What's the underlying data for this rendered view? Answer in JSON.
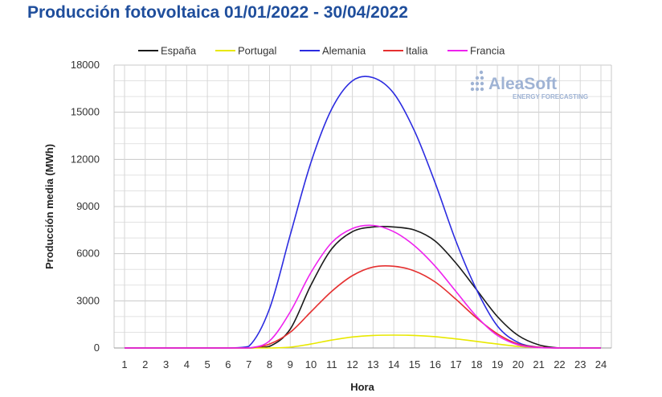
{
  "chart_data": {
    "type": "line",
    "title": "Producción fotovoltaica 01/01/2022 - 30/04/2022",
    "xlabel": "Hora",
    "ylabel": "Producción media (MWh)",
    "x": [
      1,
      2,
      3,
      4,
      5,
      6,
      7,
      8,
      9,
      10,
      11,
      12,
      13,
      14,
      15,
      16,
      17,
      18,
      19,
      20,
      21,
      22,
      23,
      24
    ],
    "xlim": [
      1,
      24
    ],
    "ylim": [
      0,
      18000
    ],
    "yticks": [
      0,
      3000,
      6000,
      9000,
      12000,
      15000,
      18000
    ],
    "grid": true,
    "legend_position": "top",
    "series": [
      {
        "name": "España",
        "color": "#1a1a1a",
        "values": [
          0,
          0,
          0,
          0,
          0,
          0,
          0,
          100,
          1200,
          4000,
          6300,
          7400,
          7700,
          7700,
          7500,
          6800,
          5400,
          3700,
          2000,
          800,
          200,
          0,
          0,
          0
        ]
      },
      {
        "name": "Portugal",
        "color": "#e8e800",
        "values": [
          0,
          0,
          0,
          0,
          0,
          0,
          0,
          0,
          50,
          250,
          500,
          700,
          800,
          820,
          800,
          720,
          580,
          420,
          250,
          100,
          20,
          0,
          0,
          0
        ]
      },
      {
        "name": "Alemania",
        "color": "#2b2be0",
        "values": [
          0,
          0,
          0,
          0,
          0,
          0,
          100,
          2500,
          7200,
          11800,
          15200,
          17000,
          17200,
          16200,
          13800,
          10500,
          6800,
          3700,
          1400,
          350,
          50,
          0,
          0,
          0
        ]
      },
      {
        "name": "Italia",
        "color": "#e53030",
        "values": [
          0,
          0,
          0,
          0,
          0,
          0,
          0,
          250,
          1000,
          2300,
          3600,
          4600,
          5150,
          5200,
          4900,
          4200,
          3100,
          1900,
          900,
          250,
          50,
          0,
          0,
          0
        ]
      },
      {
        "name": "Francia",
        "color": "#ee22ee",
        "values": [
          0,
          0,
          0,
          0,
          0,
          0,
          0,
          450,
          2300,
          4800,
          6700,
          7600,
          7800,
          7400,
          6500,
          5200,
          3600,
          2000,
          800,
          200,
          20,
          0,
          0,
          0
        ]
      }
    ]
  },
  "logo": {
    "name": "AleaSoft",
    "tagline": "ENERGY FORECASTING"
  }
}
